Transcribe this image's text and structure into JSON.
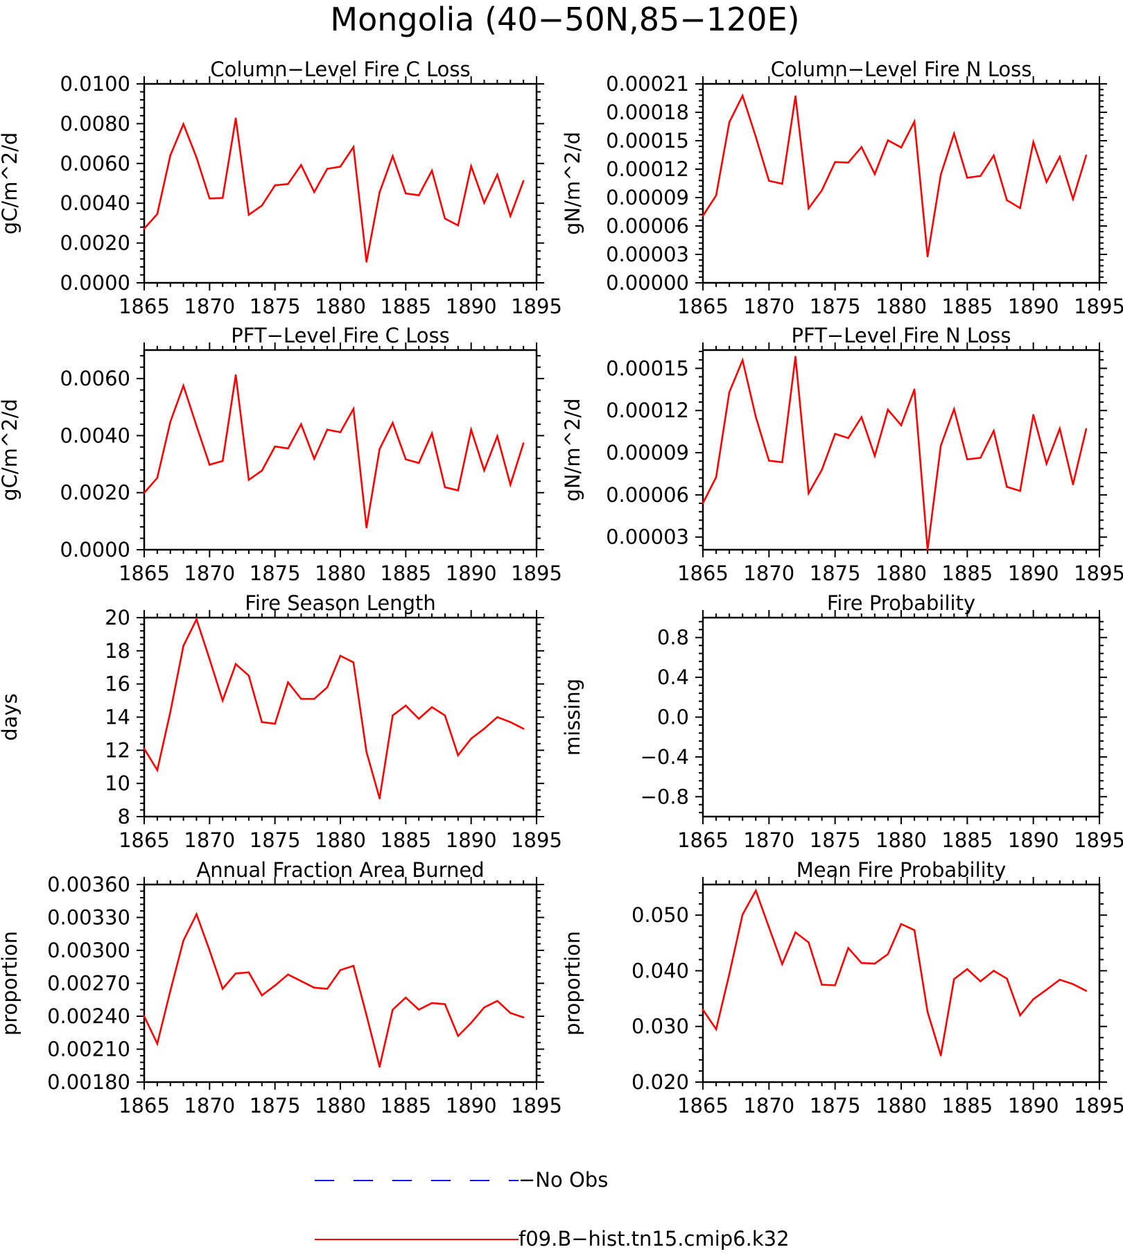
{
  "figure": {
    "title": "Mongolia (40−50N,85−120E)"
  },
  "legend": [
    {
      "label": "−No Obs",
      "color": "#0000ff",
      "dash": true
    },
    {
      "label": "f09.B−hist.tn15.cmip6.k32",
      "color": "#ff0000",
      "dash": false
    }
  ],
  "chart_data": [
    {
      "type": "line",
      "title": "Column−Level Fire C Loss",
      "ylabel": "gC/m^2/d",
      "xlim": [
        1865,
        1895
      ],
      "ylim": [
        0,
        0.01
      ],
      "xticks": [
        1865,
        1870,
        1875,
        1880,
        1885,
        1890,
        1895
      ],
      "yticks": [
        0,
        0.002,
        0.004,
        0.006,
        0.008,
        0.01
      ],
      "yticklabels": [
        "0.0000",
        "0.0020",
        "0.0040",
        "0.0060",
        "0.0080",
        "0.0100"
      ],
      "series": [
        {
          "color": "#ff0000",
          "x": [
            1865,
            1866,
            1867,
            1868,
            1869,
            1870,
            1871,
            1872,
            1873,
            1874,
            1875,
            1876,
            1877,
            1878,
            1879,
            1880,
            1881,
            1882,
            1883,
            1884,
            1885,
            1886,
            1887,
            1888,
            1889,
            1890,
            1891,
            1892,
            1893,
            1894
          ],
          "values": [
            0.00272,
            0.00346,
            0.0064,
            0.00798,
            0.0063,
            0.00424,
            0.00427,
            0.00826,
            0.00342,
            0.00388,
            0.0049,
            0.00497,
            0.00592,
            0.00456,
            0.00573,
            0.00584,
            0.00683,
            0.00106,
            0.00455,
            0.00637,
            0.00449,
            0.0044,
            0.00564,
            0.00323,
            0.00289,
            0.00586,
            0.00402,
            0.00544,
            0.00336,
            0.00512
          ]
        }
      ]
    },
    {
      "type": "line",
      "title": "Column−Level Fire N Loss",
      "ylabel": "gN/m^2/d",
      "xlim": [
        1865,
        1895
      ],
      "ylim": [
        0,
        0.00021
      ],
      "xticks": [
        1865,
        1870,
        1875,
        1880,
        1885,
        1890,
        1895
      ],
      "yticks": [
        0,
        3e-05,
        6e-05,
        9e-05,
        0.00012,
        0.00015,
        0.00018,
        0.00021
      ],
      "yticklabels": [
        "0.00000",
        "0.00003",
        "0.00006",
        "0.00009",
        "0.00012",
        "0.00015",
        "0.00018",
        "0.00021"
      ],
      "series": [
        {
          "color": "#ff0000",
          "x": [
            1865,
            1866,
            1867,
            1868,
            1869,
            1870,
            1871,
            1872,
            1873,
            1874,
            1875,
            1876,
            1877,
            1878,
            1879,
            1880,
            1881,
            1882,
            1883,
            1884,
            1885,
            1886,
            1887,
            1888,
            1889,
            1890,
            1891,
            1892,
            1893,
            1894
          ],
          "values": [
            7.07e-05,
            9.23e-05,
            0.0001695,
            0.0001975,
            0.0001541,
            0.0001077,
            0.0001045,
            0.0001969,
            7.86e-05,
            9.76e-05,
            0.0001275,
            0.0001269,
            0.0001433,
            0.0001148,
            0.0001505,
            0.0001429,
            0.0001702,
            2.79e-05,
            0.0001142,
            0.0001575,
            0.0001109,
            0.0001128,
            0.0001344,
            8.72e-05,
            7.89e-05,
            0.0001486,
            0.0001065,
            0.0001331,
            8.85e-05,
            0.0001344
          ]
        }
      ]
    },
    {
      "type": "line",
      "title": "PFT−Level Fire C Loss",
      "ylabel": "gC/m^2/d",
      "xlim": [
        1865,
        1895
      ],
      "ylim": [
        0,
        0.007
      ],
      "xticks": [
        1865,
        1870,
        1875,
        1880,
        1885,
        1890,
        1895
      ],
      "yticks": [
        0,
        0.002,
        0.004,
        0.006
      ],
      "yticklabels": [
        "0.0000",
        "0.0020",
        "0.0040",
        "0.0060"
      ],
      "series": [
        {
          "color": "#ff0000",
          "x": [
            1865,
            1866,
            1867,
            1868,
            1869,
            1870,
            1871,
            1872,
            1873,
            1874,
            1875,
            1876,
            1877,
            1878,
            1879,
            1880,
            1881,
            1882,
            1883,
            1884,
            1885,
            1886,
            1887,
            1888,
            1889,
            1890,
            1891,
            1892,
            1893,
            1894
          ],
          "values": [
            0.00199,
            0.00252,
            0.00448,
            0.00575,
            0.00434,
            0.00298,
            0.00311,
            0.00612,
            0.00245,
            0.00277,
            0.00362,
            0.00355,
            0.0044,
            0.00319,
            0.00421,
            0.00412,
            0.00494,
            0.00078,
            0.00353,
            0.00445,
            0.00317,
            0.00304,
            0.00408,
            0.00219,
            0.00208,
            0.00421,
            0.00278,
            0.00398,
            0.00228,
            0.00373
          ]
        }
      ]
    },
    {
      "type": "line",
      "title": "PFT−Level Fire N Loss",
      "ylabel": "gN/m^2/d",
      "xlim": [
        1865,
        1895
      ],
      "ylim": [
        2.1e-05,
        0.000163
      ],
      "xticks": [
        1865,
        1870,
        1875,
        1880,
        1885,
        1890,
        1895
      ],
      "yticks": [
        3e-05,
        6e-05,
        9e-05,
        0.00012,
        0.00015
      ],
      "yticklabels": [
        "0.00003",
        "0.00006",
        "0.00009",
        "0.00012",
        "0.00015"
      ],
      "series": [
        {
          "color": "#ff0000",
          "x": [
            1865,
            1866,
            1867,
            1868,
            1869,
            1870,
            1871,
            1872,
            1873,
            1874,
            1875,
            1876,
            1877,
            1878,
            1879,
            1880,
            1881,
            1882,
            1883,
            1884,
            1885,
            1886,
            1887,
            1888,
            1889,
            1890,
            1891,
            1892,
            1893,
            1894
          ],
          "values": [
            5.41e-05,
            7.26e-05,
            0.000133,
            0.0001558,
            0.0001155,
            8.43e-05,
            8.32e-05,
            0.0001582,
            6.12e-05,
            7.78e-05,
            0.0001034,
            0.0001004,
            0.0001153,
            8.77e-05,
            0.0001206,
            0.0001095,
            0.000135,
            2.1e-05,
            9.5e-05,
            0.000121,
            8.53e-05,
            8.64e-05,
            0.0001055,
            6.57e-05,
            6.28e-05,
            0.0001169,
            8.22e-05,
            0.0001071,
            6.75e-05,
            0.0001068
          ]
        }
      ]
    },
    {
      "type": "line",
      "title": "Fire Season Length",
      "ylabel": "days",
      "xlim": [
        1865,
        1895
      ],
      "ylim": [
        8,
        20
      ],
      "xticks": [
        1865,
        1870,
        1875,
        1880,
        1885,
        1890,
        1895
      ],
      "yticks": [
        8,
        10,
        12,
        14,
        16,
        18,
        20
      ],
      "yticklabels": [
        "8",
        "10",
        "12",
        "14",
        "16",
        "18",
        "20"
      ],
      "series": [
        {
          "color": "#ff0000",
          "x": [
            1865,
            1866,
            1867,
            1868,
            1869,
            1870,
            1871,
            1872,
            1873,
            1874,
            1875,
            1876,
            1877,
            1878,
            1879,
            1880,
            1881,
            1882,
            1883,
            1884,
            1885,
            1886,
            1887,
            1888,
            1889,
            1890,
            1891,
            1892,
            1893,
            1894
          ],
          "values": [
            12.1,
            10.8,
            14.3,
            18.3,
            19.9,
            17.5,
            15.0,
            17.2,
            16.5,
            13.7,
            13.6,
            16.1,
            15.1,
            15.1,
            15.8,
            17.7,
            17.3,
            11.9,
            9.1,
            14.1,
            14.7,
            13.9,
            14.6,
            14.1,
            11.7,
            12.7,
            13.3,
            14.0,
            13.7,
            13.3
          ]
        }
      ]
    },
    {
      "type": "line",
      "title": "Fire Probability",
      "ylabel": "missing",
      "xlim": [
        1865,
        1895
      ],
      "ylim": [
        -1.0,
        1.0
      ],
      "xticks": [
        1865,
        1870,
        1875,
        1880,
        1885,
        1890,
        1895
      ],
      "yticks": [
        -0.8,
        -0.4,
        0.0,
        0.4,
        0.8
      ],
      "yticklabels": [
        "−0.8",
        "−0.4",
        "0.0",
        "0.4",
        "0.8"
      ],
      "series": []
    },
    {
      "type": "line",
      "title": "Annual Fraction Area Burned",
      "ylabel": "proportion",
      "xlim": [
        1865,
        1895
      ],
      "ylim": [
        0.0018,
        0.0036
      ],
      "xticks": [
        1865,
        1870,
        1875,
        1880,
        1885,
        1890,
        1895
      ],
      "yticks": [
        0.0018,
        0.0021,
        0.0024,
        0.0027,
        0.003,
        0.0033,
        0.0036
      ],
      "yticklabels": [
        "0.00180",
        "0.00210",
        "0.00240",
        "0.00270",
        "0.00300",
        "0.00330",
        "0.00360"
      ],
      "series": [
        {
          "color": "#ff0000",
          "x": [
            1865,
            1866,
            1867,
            1868,
            1869,
            1870,
            1871,
            1872,
            1873,
            1874,
            1875,
            1876,
            1877,
            1878,
            1879,
            1880,
            1881,
            1882,
            1883,
            1884,
            1885,
            1886,
            1887,
            1888,
            1889,
            1890,
            1891,
            1892,
            1893,
            1894
          ],
          "values": [
            0.0024,
            0.00215,
            0.00263,
            0.00309,
            0.00333,
            0.003,
            0.00265,
            0.00279,
            0.0028,
            0.00259,
            0.00268,
            0.00278,
            0.00272,
            0.00266,
            0.00265,
            0.00282,
            0.00286,
            0.00241,
            0.00194,
            0.00246,
            0.00257,
            0.00246,
            0.00252,
            0.00251,
            0.00222,
            0.00234,
            0.00248,
            0.00254,
            0.00243,
            0.00239
          ]
        }
      ]
    },
    {
      "type": "line",
      "title": "Mean Fire Probability",
      "ylabel": "proportion",
      "xlim": [
        1865,
        1895
      ],
      "ylim": [
        0.02,
        0.0555
      ],
      "xticks": [
        1865,
        1870,
        1875,
        1880,
        1885,
        1890,
        1895
      ],
      "yticks": [
        0.02,
        0.03,
        0.04,
        0.05
      ],
      "yticklabels": [
        "0.020",
        "0.030",
        "0.040",
        "0.050"
      ],
      "series": [
        {
          "color": "#ff0000",
          "x": [
            1865,
            1866,
            1867,
            1868,
            1869,
            1870,
            1871,
            1872,
            1873,
            1874,
            1875,
            1876,
            1877,
            1878,
            1879,
            1880,
            1881,
            1882,
            1883,
            1884,
            1885,
            1886,
            1887,
            1888,
            1889,
            1890,
            1891,
            1892,
            1893,
            1894
          ],
          "values": [
            0.033,
            0.0295,
            0.0394,
            0.0501,
            0.0544,
            0.0478,
            0.0412,
            0.0469,
            0.0451,
            0.0375,
            0.0374,
            0.0441,
            0.0414,
            0.0413,
            0.043,
            0.0484,
            0.0473,
            0.0326,
            0.0248,
            0.0385,
            0.0403,
            0.0381,
            0.04,
            0.0386,
            0.032,
            0.0349,
            0.0366,
            0.0384,
            0.0376,
            0.0364
          ]
        }
      ]
    }
  ]
}
